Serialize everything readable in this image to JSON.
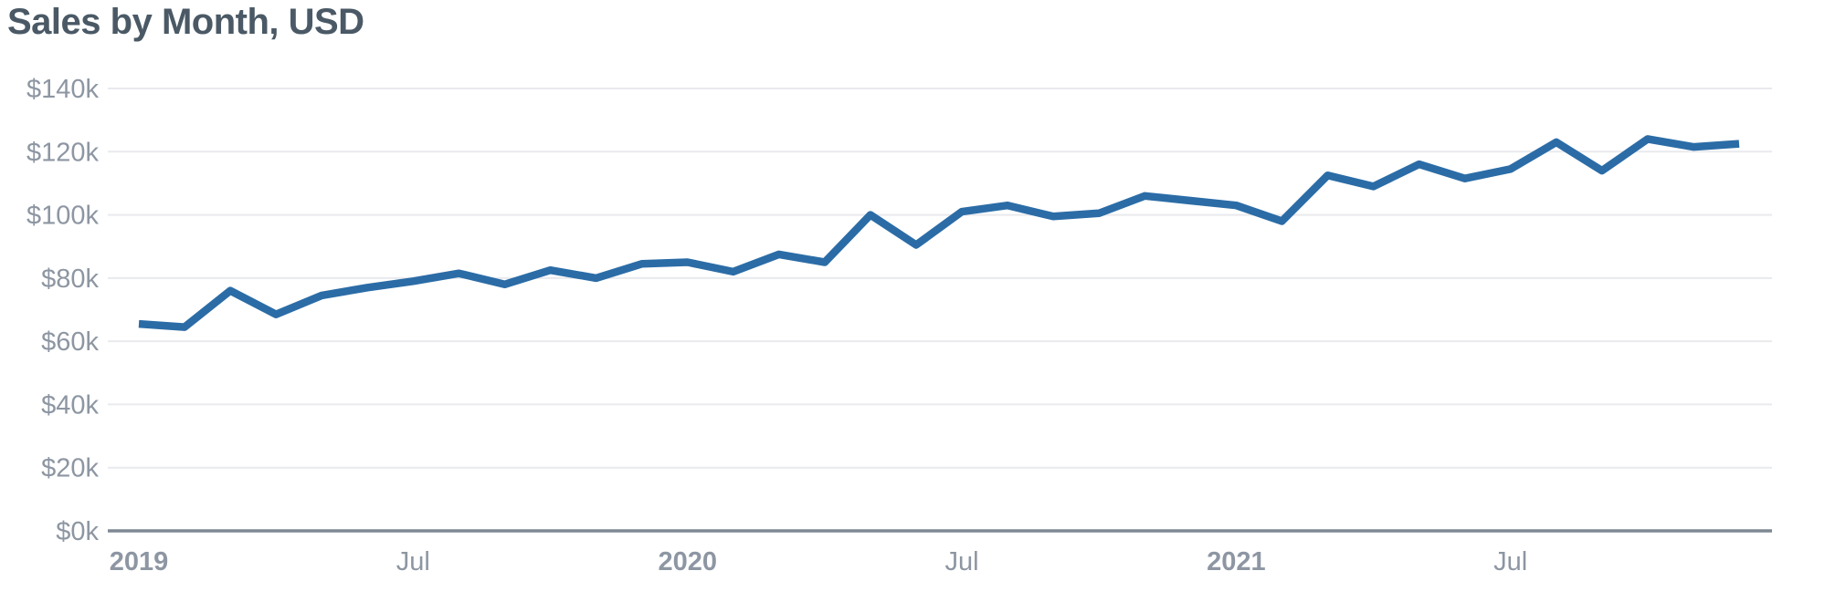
{
  "page": {
    "background_color": "#ffffff"
  },
  "chart": {
    "title": "Sales by Month, USD",
    "title_color": "#4a5965",
    "line_color": "#2b6ca6",
    "grid_color": "#e9eaee",
    "axis_color": "#7d8894",
    "tick_label_color": "#8d96a2"
  },
  "chart_data": {
    "type": "line",
    "title": "Sales by Month, USD",
    "y_unit": "USD thousands",
    "x": [
      "2019-01",
      "2019-02",
      "2019-03",
      "2019-04",
      "2019-05",
      "2019-06",
      "2019-07",
      "2019-08",
      "2019-09",
      "2019-10",
      "2019-11",
      "2019-12",
      "2020-01",
      "2020-02",
      "2020-03",
      "2020-04",
      "2020-05",
      "2020-06",
      "2020-07",
      "2020-08",
      "2020-09",
      "2020-10",
      "2020-11",
      "2020-12",
      "2021-01",
      "2021-02",
      "2021-03",
      "2021-04",
      "2021-05",
      "2021-06",
      "2021-07",
      "2021-08",
      "2021-09",
      "2021-10",
      "2021-11",
      "2021-12"
    ],
    "values": [
      65.5,
      64.5,
      76,
      68.5,
      74.5,
      77,
      79,
      81.5,
      78,
      82.5,
      80,
      84.5,
      85,
      82,
      87.5,
      85,
      100,
      90.5,
      101,
      103,
      99.5,
      100.5,
      106,
      104.5,
      103,
      98,
      112.5,
      109,
      116,
      111.5,
      114.5,
      123,
      114,
      124,
      121.5,
      122.5
    ],
    "ylim": [
      0,
      140
    ],
    "yticks": [
      0,
      20,
      40,
      60,
      80,
      100,
      120,
      140
    ],
    "ytick_labels": [
      "$0k",
      "$20k",
      "$40k",
      "$60k",
      "$80k",
      "$100k",
      "$120k",
      "$140k"
    ],
    "xticks": [
      {
        "index": 0,
        "label": "2019",
        "bold": true
      },
      {
        "index": 6,
        "label": "Jul",
        "bold": false
      },
      {
        "index": 12,
        "label": "2020",
        "bold": true
      },
      {
        "index": 18,
        "label": "Jul",
        "bold": false
      },
      {
        "index": 24,
        "label": "2021",
        "bold": true
      },
      {
        "index": 30,
        "label": "Jul",
        "bold": false
      }
    ],
    "grid": true,
    "legend": false
  }
}
